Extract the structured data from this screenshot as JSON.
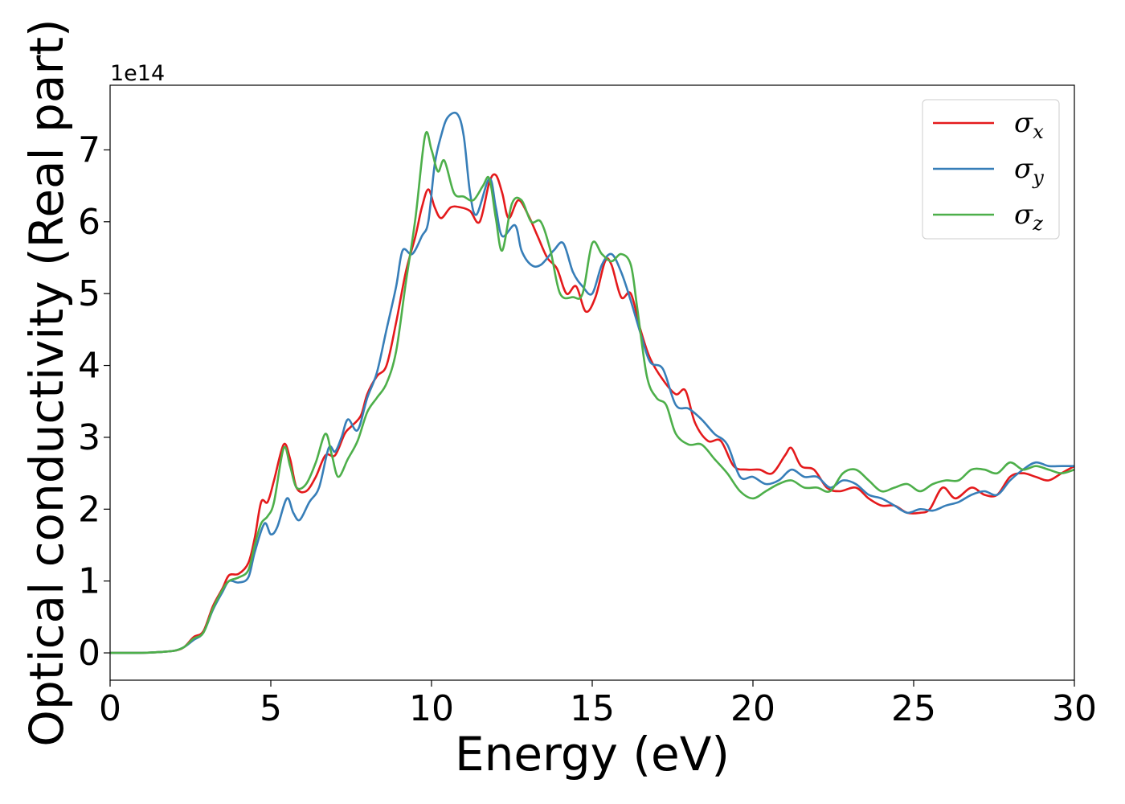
{
  "chart_data": {
    "type": "line",
    "xlabel": "Energy (eV)",
    "ylabel": "Optical conductivity (Real part)",
    "y_offset_label": "1e14",
    "xlim": [
      0,
      30
    ],
    "ylim": [
      -0.38,
      7.9
    ],
    "x_ticks": [
      0,
      5,
      10,
      15,
      20,
      25,
      30
    ],
    "y_ticks": [
      0,
      1,
      2,
      3,
      4,
      5,
      6,
      7
    ],
    "grid": false,
    "legend_position": "top-right",
    "series": [
      {
        "name": "σx",
        "symbol": "σ",
        "subscript": "x",
        "color": "#e41a1c",
        "points": [
          [
            0,
            0
          ],
          [
            1,
            0
          ],
          [
            1.5,
            0.01
          ],
          [
            2,
            0.03
          ],
          [
            2.3,
            0.08
          ],
          [
            2.6,
            0.22
          ],
          [
            2.9,
            0.3
          ],
          [
            3.2,
            0.65
          ],
          [
            3.5,
            0.9
          ],
          [
            3.7,
            1.08
          ],
          [
            4.0,
            1.1
          ],
          [
            4.3,
            1.25
          ],
          [
            4.5,
            1.6
          ],
          [
            4.7,
            2.1
          ],
          [
            4.9,
            2.1
          ],
          [
            5.1,
            2.4
          ],
          [
            5.4,
            2.9
          ],
          [
            5.6,
            2.7
          ],
          [
            5.8,
            2.3
          ],
          [
            6.1,
            2.25
          ],
          [
            6.4,
            2.45
          ],
          [
            6.7,
            2.75
          ],
          [
            7.0,
            2.75
          ],
          [
            7.3,
            3.05
          ],
          [
            7.5,
            3.15
          ],
          [
            7.8,
            3.3
          ],
          [
            8.0,
            3.6
          ],
          [
            8.3,
            3.85
          ],
          [
            8.6,
            4.0
          ],
          [
            8.9,
            4.6
          ],
          [
            9.2,
            5.3
          ],
          [
            9.5,
            5.8
          ],
          [
            9.7,
            6.2
          ],
          [
            9.9,
            6.45
          ],
          [
            10.1,
            6.2
          ],
          [
            10.3,
            6.05
          ],
          [
            10.6,
            6.2
          ],
          [
            10.9,
            6.2
          ],
          [
            11.2,
            6.15
          ],
          [
            11.5,
            6.0
          ],
          [
            11.8,
            6.55
          ],
          [
            12.0,
            6.65
          ],
          [
            12.2,
            6.4
          ],
          [
            12.4,
            6.05
          ],
          [
            12.7,
            6.3
          ],
          [
            13.0,
            6.1
          ],
          [
            13.3,
            5.8
          ],
          [
            13.6,
            5.5
          ],
          [
            13.9,
            5.35
          ],
          [
            14.2,
            5.0
          ],
          [
            14.5,
            5.1
          ],
          [
            14.8,
            4.75
          ],
          [
            15.1,
            4.95
          ],
          [
            15.4,
            5.45
          ],
          [
            15.6,
            5.4
          ],
          [
            15.9,
            4.95
          ],
          [
            16.2,
            5.0
          ],
          [
            16.5,
            4.5
          ],
          [
            16.8,
            4.1
          ],
          [
            17.2,
            3.8
          ],
          [
            17.6,
            3.6
          ],
          [
            17.9,
            3.65
          ],
          [
            18.2,
            3.2
          ],
          [
            18.6,
            2.95
          ],
          [
            19.0,
            2.95
          ],
          [
            19.4,
            2.6
          ],
          [
            19.8,
            2.55
          ],
          [
            20.2,
            2.55
          ],
          [
            20.6,
            2.5
          ],
          [
            21.0,
            2.75
          ],
          [
            21.2,
            2.85
          ],
          [
            21.5,
            2.6
          ],
          [
            21.9,
            2.55
          ],
          [
            22.3,
            2.3
          ],
          [
            22.7,
            2.25
          ],
          [
            23.2,
            2.3
          ],
          [
            23.6,
            2.15
          ],
          [
            24.0,
            2.05
          ],
          [
            24.4,
            2.05
          ],
          [
            24.8,
            1.95
          ],
          [
            25.2,
            1.95
          ],
          [
            25.5,
            2.0
          ],
          [
            25.9,
            2.3
          ],
          [
            26.3,
            2.15
          ],
          [
            26.8,
            2.3
          ],
          [
            27.2,
            2.2
          ],
          [
            27.6,
            2.2
          ],
          [
            28.0,
            2.45
          ],
          [
            28.4,
            2.5
          ],
          [
            28.8,
            2.45
          ],
          [
            29.2,
            2.4
          ],
          [
            29.6,
            2.5
          ],
          [
            30.0,
            2.6
          ]
        ]
      },
      {
        "name": "σy",
        "symbol": "σ",
        "subscript": "y",
        "color": "#377eb8",
        "points": [
          [
            0,
            0
          ],
          [
            1,
            0
          ],
          [
            1.5,
            0.01
          ],
          [
            2,
            0.03
          ],
          [
            2.3,
            0.08
          ],
          [
            2.6,
            0.18
          ],
          [
            2.9,
            0.28
          ],
          [
            3.2,
            0.6
          ],
          [
            3.5,
            0.85
          ],
          [
            3.7,
            1.0
          ],
          [
            4.0,
            0.98
          ],
          [
            4.3,
            1.05
          ],
          [
            4.5,
            1.4
          ],
          [
            4.8,
            1.8
          ],
          [
            5.0,
            1.65
          ],
          [
            5.2,
            1.75
          ],
          [
            5.5,
            2.15
          ],
          [
            5.7,
            1.95
          ],
          [
            5.9,
            1.85
          ],
          [
            6.2,
            2.1
          ],
          [
            6.5,
            2.3
          ],
          [
            6.8,
            2.85
          ],
          [
            7.0,
            2.8
          ],
          [
            7.2,
            3.0
          ],
          [
            7.4,
            3.25
          ],
          [
            7.7,
            3.1
          ],
          [
            8.0,
            3.55
          ],
          [
            8.3,
            3.9
          ],
          [
            8.6,
            4.5
          ],
          [
            8.9,
            5.1
          ],
          [
            9.1,
            5.6
          ],
          [
            9.4,
            5.55
          ],
          [
            9.7,
            5.8
          ],
          [
            9.9,
            6.0
          ],
          [
            10.1,
            6.8
          ],
          [
            10.3,
            7.2
          ],
          [
            10.5,
            7.45
          ],
          [
            10.8,
            7.5
          ],
          [
            11.0,
            7.2
          ],
          [
            11.2,
            6.4
          ],
          [
            11.4,
            6.1
          ],
          [
            11.8,
            6.6
          ],
          [
            12.0,
            6.2
          ],
          [
            12.2,
            5.8
          ],
          [
            12.6,
            5.95
          ],
          [
            12.8,
            5.6
          ],
          [
            13.1,
            5.4
          ],
          [
            13.4,
            5.4
          ],
          [
            13.8,
            5.6
          ],
          [
            14.1,
            5.7
          ],
          [
            14.4,
            5.3
          ],
          [
            14.7,
            5.1
          ],
          [
            15.0,
            5.0
          ],
          [
            15.3,
            5.4
          ],
          [
            15.6,
            5.55
          ],
          [
            15.9,
            5.3
          ],
          [
            16.2,
            4.9
          ],
          [
            16.5,
            4.45
          ],
          [
            16.8,
            4.05
          ],
          [
            17.2,
            3.95
          ],
          [
            17.6,
            3.45
          ],
          [
            18.0,
            3.4
          ],
          [
            18.4,
            3.25
          ],
          [
            18.8,
            3.05
          ],
          [
            19.2,
            2.9
          ],
          [
            19.6,
            2.45
          ],
          [
            20.0,
            2.45
          ],
          [
            20.4,
            2.35
          ],
          [
            20.8,
            2.4
          ],
          [
            21.2,
            2.55
          ],
          [
            21.6,
            2.45
          ],
          [
            22.0,
            2.45
          ],
          [
            22.4,
            2.3
          ],
          [
            22.8,
            2.4
          ],
          [
            23.2,
            2.35
          ],
          [
            23.6,
            2.2
          ],
          [
            24.0,
            2.15
          ],
          [
            24.4,
            2.05
          ],
          [
            24.8,
            1.95
          ],
          [
            25.2,
            2.0
          ],
          [
            25.6,
            1.98
          ],
          [
            26.0,
            2.05
          ],
          [
            26.4,
            2.1
          ],
          [
            26.8,
            2.2
          ],
          [
            27.2,
            2.25
          ],
          [
            27.6,
            2.2
          ],
          [
            28.0,
            2.4
          ],
          [
            28.4,
            2.55
          ],
          [
            28.8,
            2.65
          ],
          [
            29.2,
            2.6
          ],
          [
            29.6,
            2.6
          ],
          [
            30.0,
            2.6
          ]
        ]
      },
      {
        "name": "σz",
        "symbol": "σ",
        "subscript": "z",
        "color": "#4daf4a",
        "points": [
          [
            0,
            0
          ],
          [
            1,
            0
          ],
          [
            1.5,
            0.01
          ],
          [
            2,
            0.03
          ],
          [
            2.3,
            0.08
          ],
          [
            2.6,
            0.2
          ],
          [
            2.9,
            0.28
          ],
          [
            3.2,
            0.62
          ],
          [
            3.5,
            0.88
          ],
          [
            3.7,
            1.0
          ],
          [
            4.0,
            1.05
          ],
          [
            4.3,
            1.15
          ],
          [
            4.5,
            1.5
          ],
          [
            4.7,
            1.8
          ],
          [
            4.9,
            1.9
          ],
          [
            5.1,
            2.1
          ],
          [
            5.4,
            2.85
          ],
          [
            5.6,
            2.6
          ],
          [
            5.8,
            2.3
          ],
          [
            6.1,
            2.35
          ],
          [
            6.4,
            2.65
          ],
          [
            6.7,
            3.05
          ],
          [
            6.9,
            2.75
          ],
          [
            7.1,
            2.45
          ],
          [
            7.4,
            2.7
          ],
          [
            7.7,
            2.95
          ],
          [
            8.0,
            3.35
          ],
          [
            8.3,
            3.55
          ],
          [
            8.6,
            3.75
          ],
          [
            8.9,
            4.2
          ],
          [
            9.2,
            5.15
          ],
          [
            9.5,
            6.05
          ],
          [
            9.8,
            7.2
          ],
          [
            10.0,
            7.0
          ],
          [
            10.2,
            6.7
          ],
          [
            10.4,
            6.85
          ],
          [
            10.7,
            6.4
          ],
          [
            11.0,
            6.35
          ],
          [
            11.3,
            6.3
          ],
          [
            11.6,
            6.5
          ],
          [
            11.8,
            6.6
          ],
          [
            12.0,
            6.05
          ],
          [
            12.2,
            5.6
          ],
          [
            12.5,
            6.25
          ],
          [
            12.8,
            6.3
          ],
          [
            13.1,
            6.0
          ],
          [
            13.4,
            6.0
          ],
          [
            13.7,
            5.6
          ],
          [
            14.0,
            5.0
          ],
          [
            14.4,
            4.95
          ],
          [
            14.7,
            5.0
          ],
          [
            15.0,
            5.7
          ],
          [
            15.3,
            5.55
          ],
          [
            15.6,
            5.45
          ],
          [
            15.9,
            5.55
          ],
          [
            16.2,
            5.4
          ],
          [
            16.4,
            4.8
          ],
          [
            16.7,
            3.85
          ],
          [
            17.0,
            3.55
          ],
          [
            17.3,
            3.45
          ],
          [
            17.6,
            3.05
          ],
          [
            18.0,
            2.9
          ],
          [
            18.4,
            2.9
          ],
          [
            18.8,
            2.7
          ],
          [
            19.2,
            2.5
          ],
          [
            19.6,
            2.25
          ],
          [
            20.0,
            2.15
          ],
          [
            20.4,
            2.25
          ],
          [
            20.8,
            2.35
          ],
          [
            21.2,
            2.4
          ],
          [
            21.6,
            2.3
          ],
          [
            22.0,
            2.3
          ],
          [
            22.4,
            2.25
          ],
          [
            22.8,
            2.5
          ],
          [
            23.2,
            2.55
          ],
          [
            23.6,
            2.4
          ],
          [
            24.0,
            2.25
          ],
          [
            24.4,
            2.3
          ],
          [
            24.8,
            2.35
          ],
          [
            25.2,
            2.25
          ],
          [
            25.6,
            2.35
          ],
          [
            26.0,
            2.4
          ],
          [
            26.4,
            2.4
          ],
          [
            26.8,
            2.55
          ],
          [
            27.2,
            2.55
          ],
          [
            27.6,
            2.5
          ],
          [
            28.0,
            2.65
          ],
          [
            28.4,
            2.55
          ],
          [
            28.8,
            2.6
          ],
          [
            29.2,
            2.55
          ],
          [
            29.6,
            2.5
          ],
          [
            30.0,
            2.55
          ]
        ]
      }
    ]
  }
}
